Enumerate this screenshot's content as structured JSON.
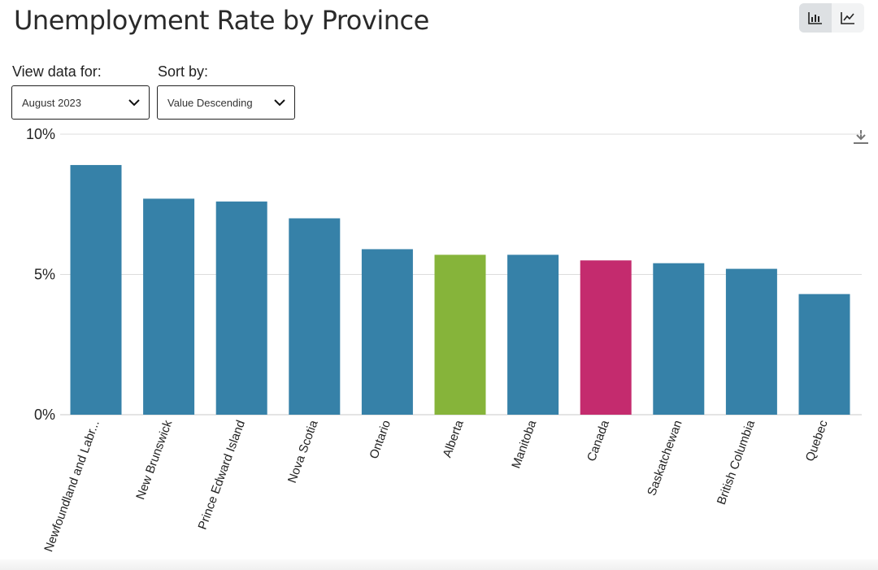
{
  "header": {
    "title": "Unemployment Rate by Province"
  },
  "view_toggle": {
    "active": "bar",
    "icons": [
      "bar-chart-icon",
      "line-chart-icon"
    ]
  },
  "controls": {
    "view_label": "View data for:",
    "view_value": "August 2023",
    "sort_label": "Sort by:",
    "sort_value": "Value Descending"
  },
  "colors": {
    "province": "#3681a8",
    "alberta": "#86b43a",
    "canada": "#c42b6e",
    "grid": "#dddddd"
  },
  "chart_data": {
    "type": "bar",
    "title": "Unemployment Rate by Province",
    "xlabel": "",
    "ylabel": "",
    "ylim": [
      0,
      10
    ],
    "yticks": [
      {
        "value": 0,
        "label": "0%"
      },
      {
        "value": 5,
        "label": "5%"
      },
      {
        "value": 10,
        "label": "10%"
      }
    ],
    "grid": true,
    "categories": [
      "Newfoundland and Labr...",
      "New Brunswick",
      "Prince Edward Island",
      "Nova Scotia",
      "Ontario",
      "Alberta",
      "Manitoba",
      "Canada",
      "Saskatchewan",
      "British Columbia",
      "Quebec"
    ],
    "values": [
      8.9,
      7.7,
      7.6,
      7.0,
      5.9,
      5.7,
      5.7,
      5.5,
      5.4,
      5.2,
      4.3
    ],
    "highlight": {
      "Alberta": "#86b43a",
      "Canada": "#c42b6e"
    }
  }
}
